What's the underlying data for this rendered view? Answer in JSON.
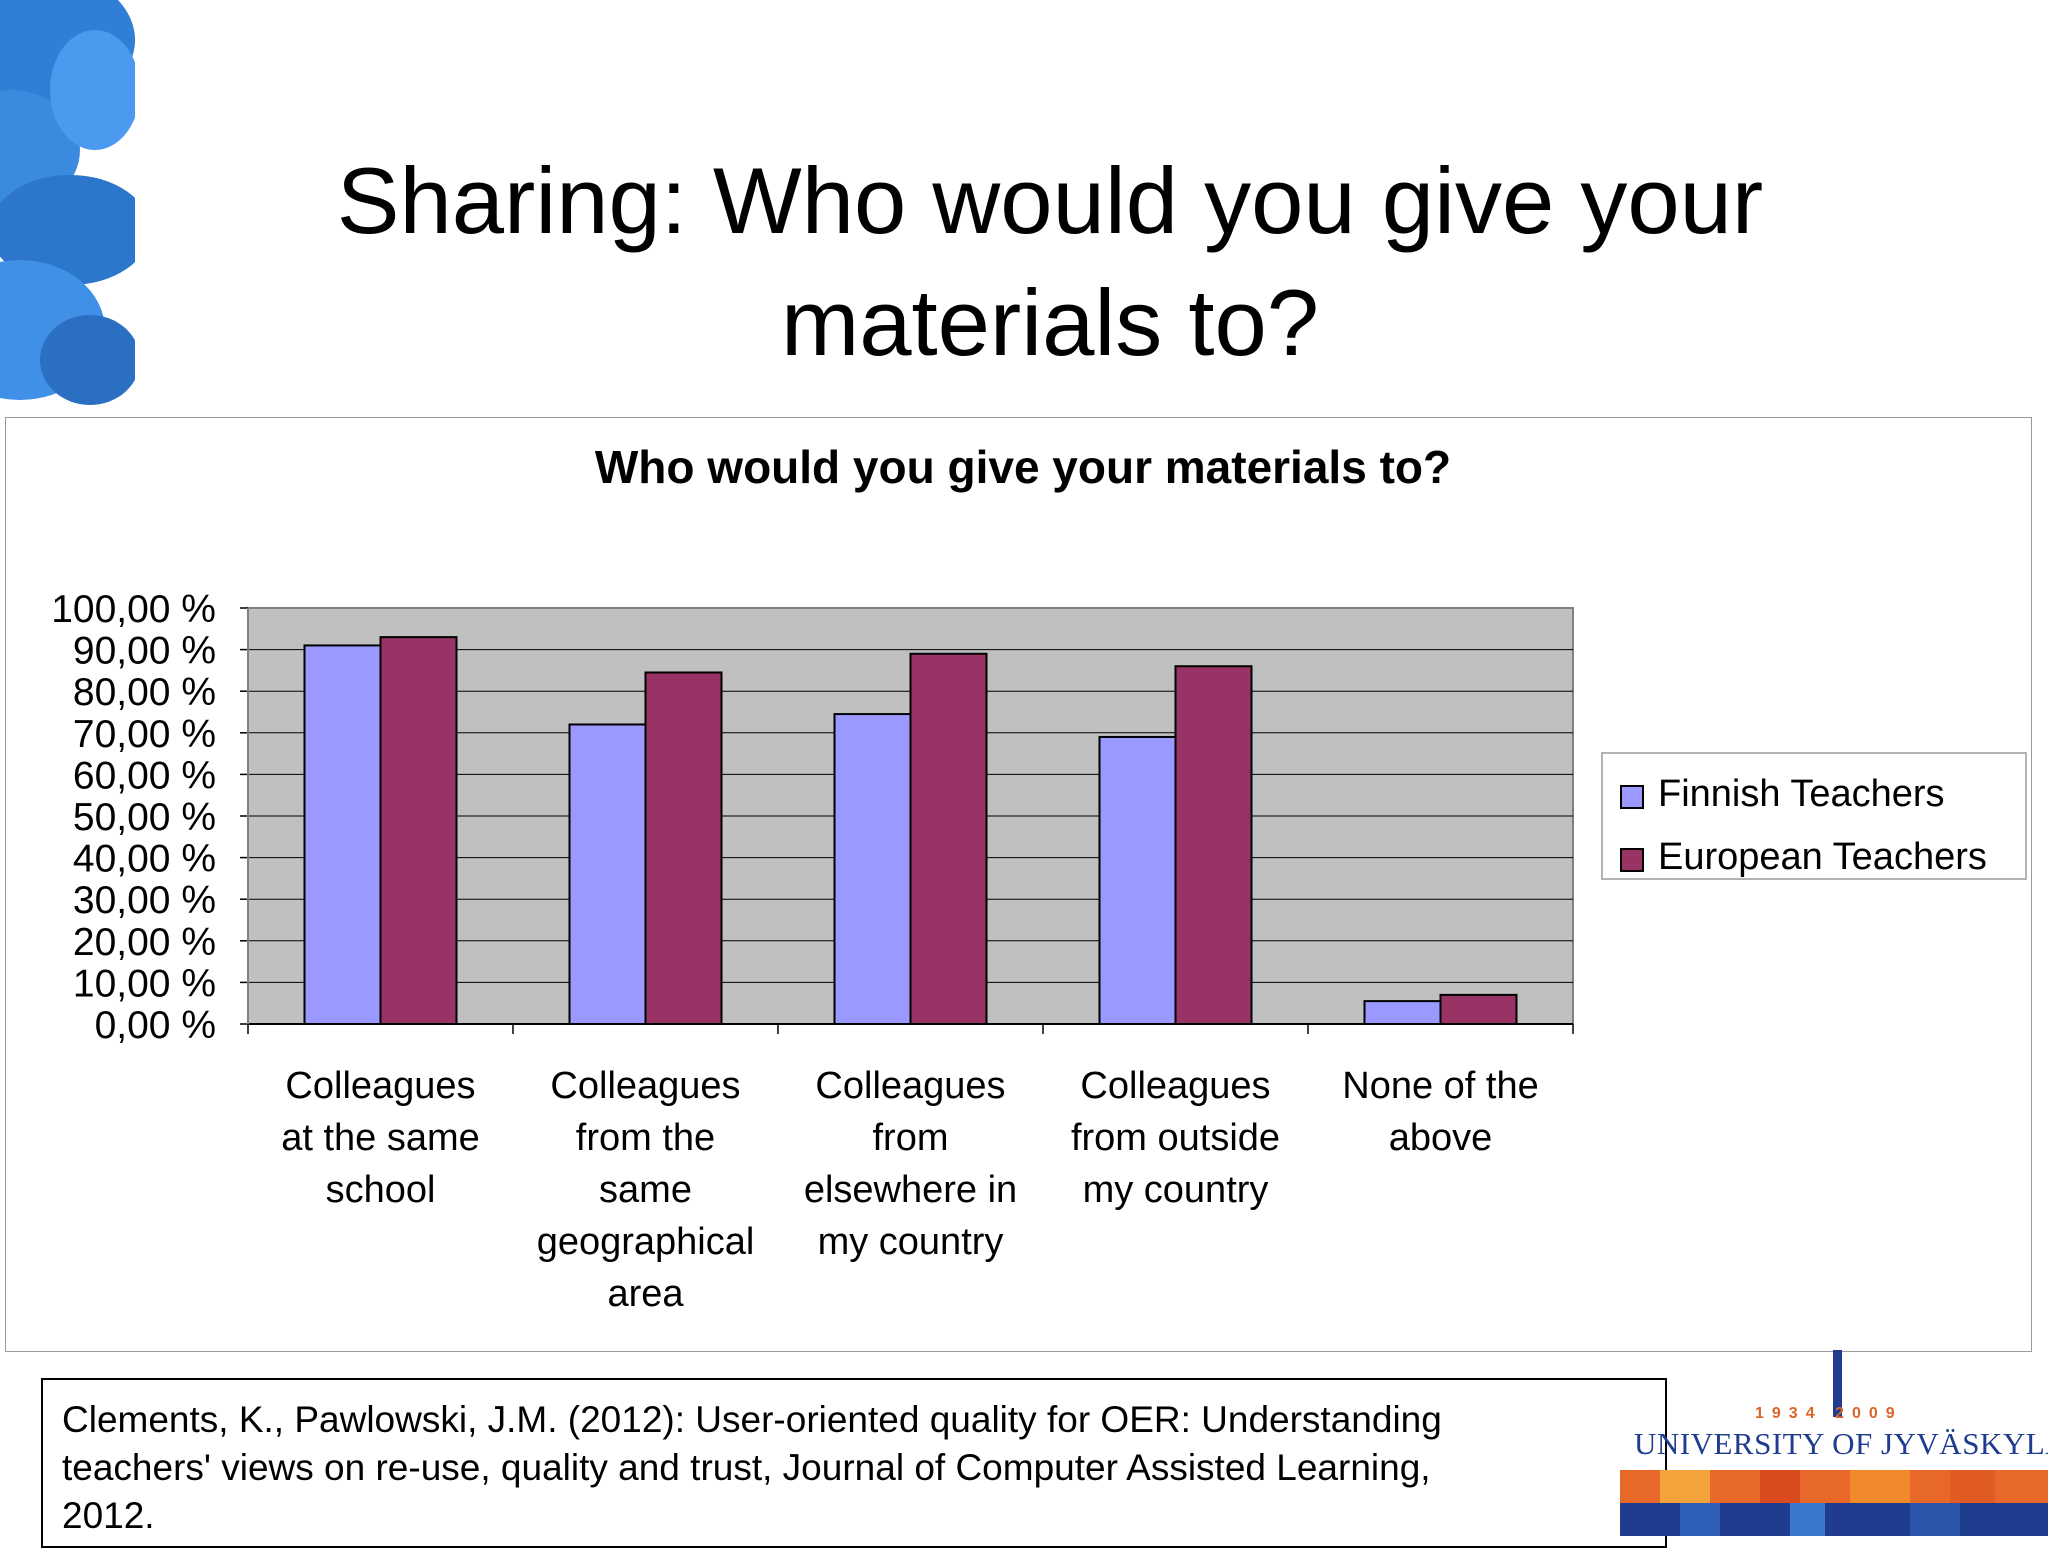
{
  "slide": {
    "title": "Sharing: Who would you give your materials to?"
  },
  "chart_data": {
    "type": "bar",
    "title": "Who would you give your materials to?",
    "categories": [
      [
        "Colleagues",
        "at the same",
        "school"
      ],
      [
        "Colleagues",
        "from the",
        "same",
        "geographical",
        "area"
      ],
      [
        "Colleagues",
        "from",
        "elsewhere in",
        "my country"
      ],
      [
        "Colleagues",
        "from outside",
        "my country"
      ],
      [
        "None of the",
        "above"
      ]
    ],
    "series": [
      {
        "name": "Finnish Teachers",
        "values": [
          91,
          72,
          74.5,
          69,
          5.5
        ],
        "color": "#9999ff"
      },
      {
        "name": "European Teachers",
        "values": [
          93,
          84.5,
          89,
          86,
          7
        ],
        "color": "#993366"
      }
    ],
    "yticks": [
      "0,00 %",
      "10,00 %",
      "20,00 %",
      "30,00 %",
      "40,00 %",
      "50,00 %",
      "60,00 %",
      "70,00 %",
      "80,00 %",
      "90,00 %",
      "100,00 %"
    ],
    "ylim": [
      0,
      100
    ],
    "grid": true,
    "plot_background": "#c0c0c0",
    "legend_position": "right"
  },
  "citation": {
    "lines": [
      "Clements, K., Pawlowski, J.M. (2012): User-oriented quality for OER: Understanding",
      "teachers' views on re-use, quality and trust, Journal of Computer Assisted Learning,",
      "2012."
    ]
  },
  "logo": {
    "years": "1934  2009",
    "name": "UNIVERSITY OF JYVÄSKYLÄ"
  }
}
